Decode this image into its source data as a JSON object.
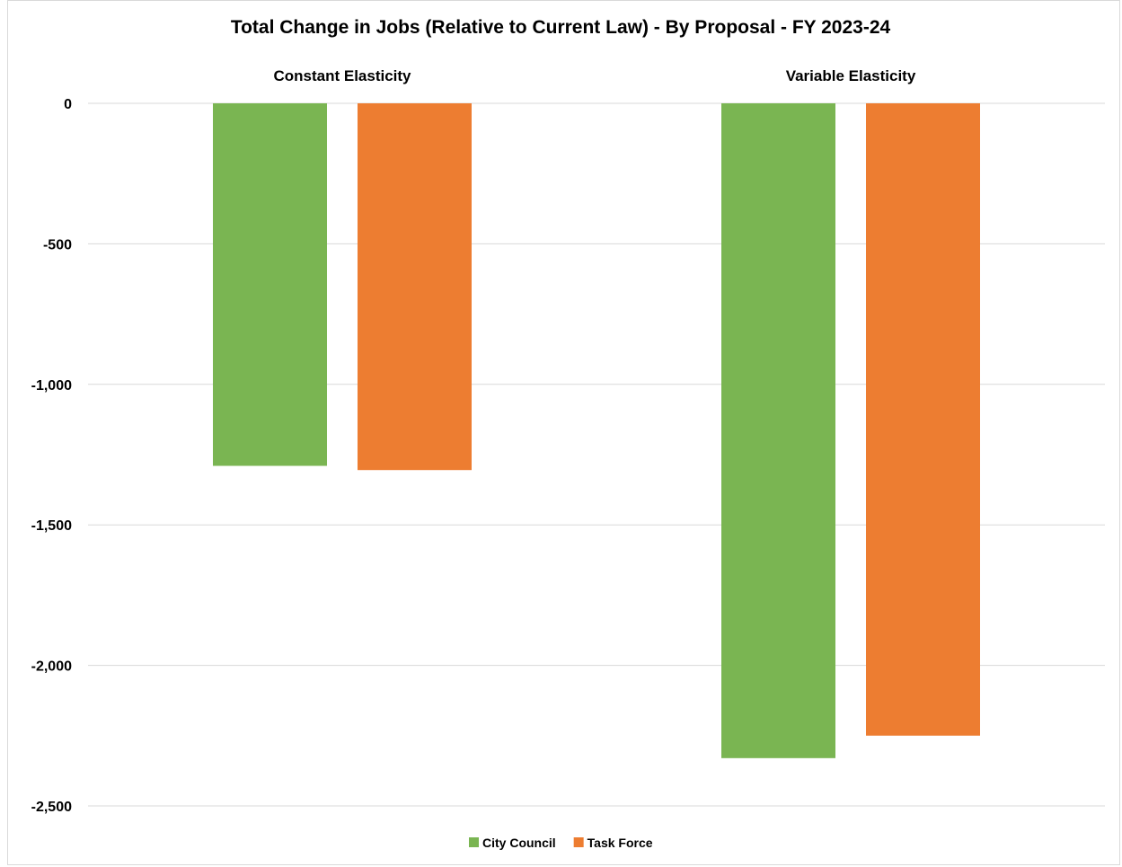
{
  "chart_data": {
    "type": "bar",
    "title": "Total Change in Jobs (Relative to Current Law) - By Proposal - FY 2023-24",
    "categories": [
      "Constant Elasticity",
      "Variable Elasticity"
    ],
    "series": [
      {
        "name": "City Council",
        "color": "#7ab552",
        "values": [
          -1290,
          -2330
        ]
      },
      {
        "name": "Task Force",
        "color": "#ed7d31",
        "values": [
          -1305,
          -2250
        ]
      }
    ],
    "ylim": [
      -2500,
      0
    ],
    "yticks": [
      0,
      -500,
      -1000,
      -1500,
      -2000,
      -2500
    ],
    "ytick_labels": [
      "0",
      "-500",
      "-1,000",
      "-1,500",
      "-2,000",
      "-2,500"
    ],
    "xlabel": "",
    "ylabel": "",
    "grid": true,
    "legend_position": "bottom",
    "category_label_position": "top"
  }
}
